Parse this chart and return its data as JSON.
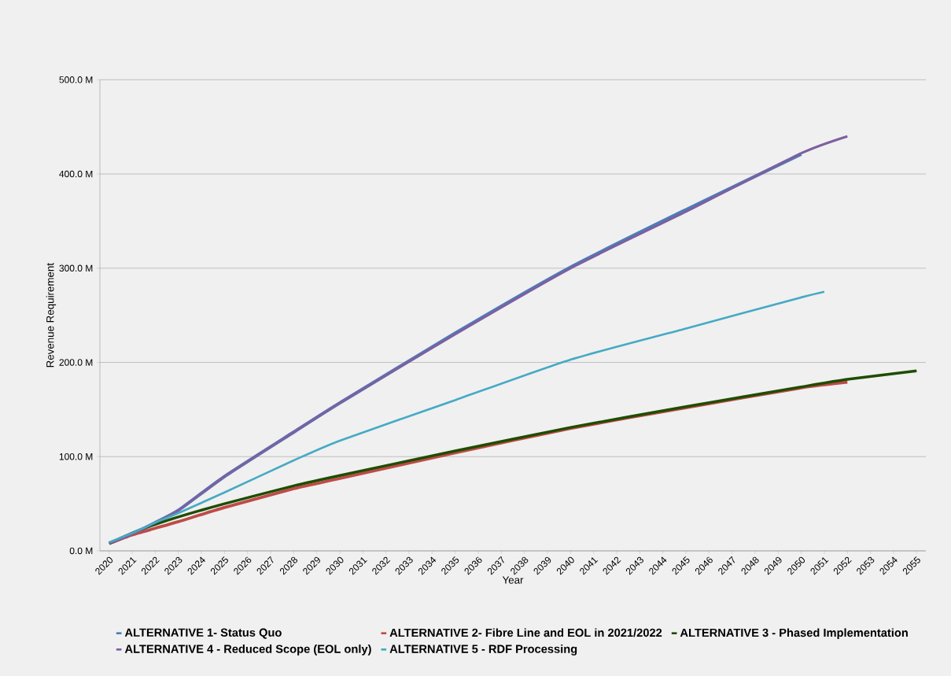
{
  "chart_data": {
    "type": "line",
    "xlabel": "Year",
    "ylabel": "Revenue Requirement",
    "xlim": [
      2019.6,
      2055.4
    ],
    "xticks": [
      2020,
      2021,
      2022,
      2023,
      2024,
      2025,
      2026,
      2027,
      2028,
      2029,
      2030,
      2031,
      2032,
      2033,
      2034,
      2035,
      2036,
      2037,
      2038,
      2039,
      2040,
      2041,
      2042,
      2043,
      2044,
      2045,
      2046,
      2047,
      2048,
      2049,
      2050,
      2051,
      2052,
      2053,
      2054,
      2055
    ],
    "ylim": [
      0,
      500
    ],
    "yticks": [
      {
        "value": 0,
        "label": "0.0 M"
      },
      {
        "value": 100,
        "label": "100.0 M"
      },
      {
        "value": 200,
        "label": "200.0 M"
      },
      {
        "value": 300,
        "label": "300.0 M"
      },
      {
        "value": 400,
        "label": "400.0 M"
      },
      {
        "value": 500,
        "label": "500.0 M"
      }
    ],
    "grid": "y",
    "legend": "bottom",
    "marker": "none",
    "line_style": "solid",
    "series": [
      {
        "name": "ALTERNATIVE 1- Status Quo",
        "color": "#4a7ebb",
        "x": [
          2020,
          2021,
          2022,
          2023,
          2025,
          2028,
          2030,
          2035,
          2040,
          2045,
          2050
        ],
        "values": [
          8,
          18,
          30,
          43,
          79,
          126,
          157,
          231,
          301,
          362,
          421
        ]
      },
      {
        "name": "ALTERNATIVE 2- Fibre Line and EOL in 2021/2022",
        "color": "#be4b48",
        "x": [
          2020,
          2021,
          2022,
          2023,
          2025,
          2028,
          2030,
          2035,
          2040,
          2045,
          2050,
          2052
        ],
        "values": [
          8,
          17,
          24,
          31,
          46,
          66,
          77,
          104,
          130,
          152,
          173,
          179
        ]
      },
      {
        "name": "ALTERNATIVE 3 - Phased Implementation",
        "color": "#1e4d00",
        "x": [
          2020,
          2021,
          2022,
          2023,
          2025,
          2028,
          2030,
          2035,
          2040,
          2045,
          2050,
          2052,
          2055
        ],
        "values": [
          8,
          19,
          28,
          36,
          50,
          69,
          80,
          106,
          131,
          153,
          174,
          182,
          191
        ]
      },
      {
        "name": "ALTERNATIVE 4 - Reduced Scope (EOL only)",
        "color": "#7d60a0",
        "x": [
          2020,
          2021,
          2022,
          2023,
          2025,
          2028,
          2030,
          2035,
          2040,
          2045,
          2050,
          2052
        ],
        "values": [
          8,
          18,
          30,
          43,
          79,
          126,
          157,
          230,
          300,
          360,
          422,
          440
        ]
      },
      {
        "name": "ALTERNATIVE 5 - RDF Processing",
        "color": "#46aac5",
        "x": [
          2020,
          2021,
          2022,
          2023,
          2025,
          2028,
          2030,
          2035,
          2040,
          2045,
          2050,
          2051
        ],
        "values": [
          9,
          19,
          30,
          40,
          62,
          96,
          117,
          160,
          203,
          236,
          269,
          275
        ]
      }
    ]
  }
}
